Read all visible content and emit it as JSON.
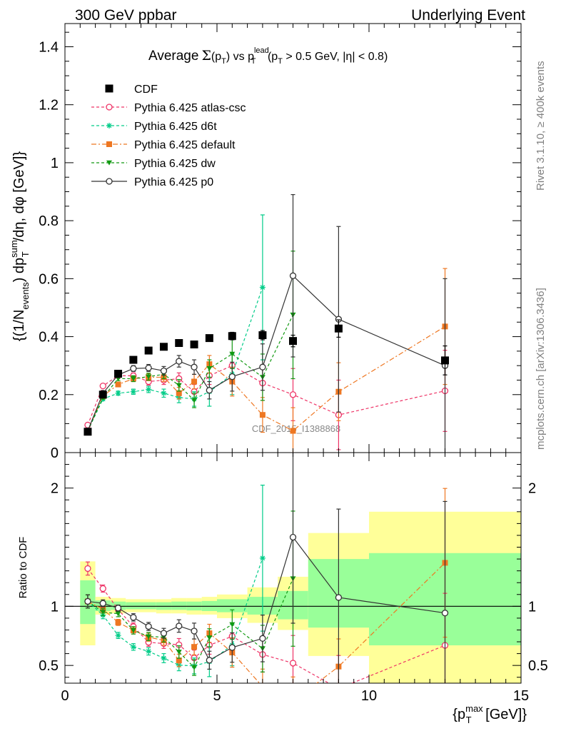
{
  "header": {
    "left": "300 GeV ppbar",
    "right": "Underlying Event"
  },
  "side": {
    "rivet": "Rivet 3.1.10, ≥ 400k events",
    "mcplots": "mcplots.cern.ch [arXiv:1306.3436]"
  },
  "watermark": "CDF_2015_I1388868",
  "title": {
    "prefix": "Average",
    "sigma": "Σ",
    "pt_open": "(p",
    "pt_sub": "T",
    "pt_close": ")",
    "vs": " vs p",
    "vs_sup": "lead",
    "vs_sub": "T",
    "cut_open": " (p",
    "cut_sub": "T",
    "cut_rest": " > 0.5 GeV, |η| < 0.8)"
  },
  "axes": {
    "ylabel_top": "{(1/N_events) dp_T^sum/dη, dφ [GeV]}",
    "ylabel_top_parts": {
      "a": "{(1/N",
      "b": "events",
      "c": ") dp",
      "d": "sum",
      "e": "T",
      "f": "/dη, dφ [GeV]}"
    },
    "ylabel_bottom": "Ratio to CDF",
    "xlabel_parts": {
      "a": "{p",
      "b": "max",
      "c": "T",
      "d": " [GeV]}"
    },
    "xlabel": "{p_T^max [GeV]}"
  },
  "chart_data": {
    "type": "scatter",
    "x_range": [
      0,
      15
    ],
    "top": {
      "ylim": [
        0,
        1.48
      ],
      "yticks": [
        0,
        0.2,
        0.4,
        0.6,
        0.8,
        1,
        1.2,
        1.4
      ],
      "ytick_labels": [
        "0",
        "0.2",
        "0.4",
        "0.6",
        "0.8",
        "1",
        "1.2",
        "1.4"
      ]
    },
    "bottom": {
      "ylim": [
        0.35,
        2.3
      ],
      "yticks": [
        0.5,
        1,
        2
      ],
      "ytick_labels": [
        "0.5",
        "1",
        "2"
      ],
      "bands": [
        {
          "x": [
            0.5,
            1
          ],
          "yellow": [
            0.67,
            1.38
          ],
          "green": [
            0.85,
            1.22
          ]
        },
        {
          "x": [
            1,
            1.5
          ],
          "yellow": [
            0.93,
            1.08
          ],
          "green": [
            0.96,
            1.05
          ]
        },
        {
          "x": [
            1.5,
            2
          ],
          "yellow": [
            0.94,
            1.07
          ],
          "green": [
            0.97,
            1.04
          ]
        },
        {
          "x": [
            2,
            2.5
          ],
          "yellow": [
            0.95,
            1.06
          ],
          "green": [
            0.975,
            1.035
          ]
        },
        {
          "x": [
            2.5,
            3
          ],
          "yellow": [
            0.95,
            1.06
          ],
          "green": [
            0.975,
            1.035
          ]
        },
        {
          "x": [
            3,
            3.5
          ],
          "yellow": [
            0.94,
            1.06
          ],
          "green": [
            0.97,
            1.035
          ]
        },
        {
          "x": [
            3.5,
            4
          ],
          "yellow": [
            0.94,
            1.07
          ],
          "green": [
            0.97,
            1.04
          ]
        },
        {
          "x": [
            4,
            4.5
          ],
          "yellow": [
            0.93,
            1.07
          ],
          "green": [
            0.965,
            1.04
          ]
        },
        {
          "x": [
            4.5,
            5
          ],
          "yellow": [
            0.93,
            1.08
          ],
          "green": [
            0.96,
            1.045
          ]
        },
        {
          "x": [
            5,
            6
          ],
          "yellow": [
            0.9,
            1.1
          ],
          "green": [
            0.95,
            1.06
          ]
        },
        {
          "x": [
            6,
            7
          ],
          "yellow": [
            0.86,
            1.16
          ],
          "green": [
            0.93,
            1.08
          ]
        },
        {
          "x": [
            7,
            8
          ],
          "yellow": [
            0.8,
            1.25
          ],
          "green": [
            0.89,
            1.13
          ]
        },
        {
          "x": [
            8,
            10
          ],
          "yellow": [
            0.58,
            1.62
          ],
          "green": [
            0.82,
            1.4
          ]
        },
        {
          "x": [
            10,
            15
          ],
          "yellow": [
            0.35,
            1.8
          ],
          "green": [
            0.67,
            1.45
          ]
        }
      ]
    },
    "series": [
      {
        "name": "CDF",
        "color": "#000000",
        "marker": "square-filled",
        "line": "none",
        "x": [
          0.75,
          1.25,
          1.75,
          2.25,
          2.75,
          3.25,
          3.75,
          4.25,
          4.75,
          5.5,
          6.5,
          7.5,
          9,
          12.5
        ],
        "y": [
          0.072,
          0.2,
          0.272,
          0.32,
          0.352,
          0.365,
          0.378,
          0.373,
          0.395,
          0.402,
          0.405,
          0.385,
          0.428,
          0.318
        ],
        "yerr": [
          0.004,
          0.006,
          0.006,
          0.007,
          0.007,
          0.008,
          0.009,
          0.01,
          0.011,
          0.013,
          0.016,
          0.02,
          0.03,
          0.05
        ]
      },
      {
        "name": "Pythia 6.425 atlas-csc",
        "color": "#ee3366",
        "marker": "circle-open",
        "line": "dashed",
        "x": [
          0.75,
          1.25,
          1.75,
          2.25,
          2.75,
          3.25,
          3.75,
          4.25,
          4.75,
          5.5,
          6.5,
          7.5,
          9,
          12.5
        ],
        "y": [
          0.095,
          0.23,
          0.265,
          0.265,
          0.245,
          0.25,
          0.255,
          0.21,
          0.265,
          0.3,
          0.24,
          0.2,
          0.13,
          0.213
        ],
        "yerr": [
          0.004,
          0.006,
          0.007,
          0.01,
          0.012,
          0.015,
          0.02,
          0.025,
          0.03,
          0.04,
          0.06,
          0.09,
          0.12,
          0.14
        ]
      },
      {
        "name": "Pythia 6.425 d6t",
        "color": "#00cc88",
        "marker": "star",
        "line": "dashed",
        "x": [
          0.75,
          1.25,
          1.75,
          2.25,
          2.75,
          3.25,
          3.75,
          4.25,
          4.75,
          5.5,
          6.5
        ],
        "y": [
          0.075,
          0.185,
          0.205,
          0.21,
          0.218,
          0.205,
          0.19,
          0.185,
          0.21,
          0.27,
          0.57
        ],
        "yerr": [
          0.004,
          0.006,
          0.007,
          0.009,
          0.011,
          0.014,
          0.018,
          0.025,
          0.05,
          0.07,
          0.25
        ]
      },
      {
        "name": "Pythia 6.425 default",
        "color": "#ee7722",
        "marker": "square-filled",
        "line": "dashdot",
        "x": [
          0.75,
          1.25,
          1.75,
          2.25,
          2.75,
          3.25,
          3.75,
          4.25,
          4.75,
          5.5,
          6.5,
          7.5,
          9,
          12.5
        ],
        "y": [
          0.075,
          0.195,
          0.235,
          0.255,
          0.26,
          0.26,
          0.205,
          0.245,
          0.305,
          0.245,
          0.13,
          0.075,
          0.21,
          0.435
        ],
        "yerr": [
          0.004,
          0.006,
          0.007,
          0.01,
          0.012,
          0.015,
          0.02,
          0.025,
          0.03,
          0.05,
          0.06,
          0.08,
          0.1,
          0.2
        ]
      },
      {
        "name": "Pythia 6.425 dw",
        "color": "#119911",
        "marker": "triangle-down-filled",
        "line": "dashed",
        "x": [
          0.75,
          1.25,
          1.75,
          2.25,
          2.75,
          3.25,
          3.75,
          4.25,
          4.75,
          5.5,
          6.5,
          7.5
        ],
        "y": [
          0.075,
          0.19,
          0.255,
          0.255,
          0.262,
          0.27,
          0.232,
          0.18,
          0.29,
          0.34,
          0.26,
          0.475
        ],
        "yerr": [
          0.004,
          0.006,
          0.007,
          0.01,
          0.012,
          0.015,
          0.02,
          0.025,
          0.03,
          0.05,
          0.08,
          0.22
        ]
      },
      {
        "name": "Pythia 6.425 p0",
        "color": "#333333",
        "marker": "circle-open",
        "line": "solid",
        "x": [
          0.75,
          1.25,
          1.75,
          2.25,
          2.75,
          3.25,
          3.75,
          4.25,
          4.75,
          5.5,
          6.5,
          7.5,
          9,
          12.5
        ],
        "y": [
          0.075,
          0.205,
          0.268,
          0.29,
          0.292,
          0.282,
          0.315,
          0.295,
          0.215,
          0.262,
          0.295,
          0.61,
          0.46,
          0.3
        ],
        "yerr": [
          0.004,
          0.006,
          0.007,
          0.01,
          0.012,
          0.015,
          0.02,
          0.025,
          0.03,
          0.05,
          0.08,
          0.28,
          0.32,
          0.3
        ]
      }
    ]
  }
}
